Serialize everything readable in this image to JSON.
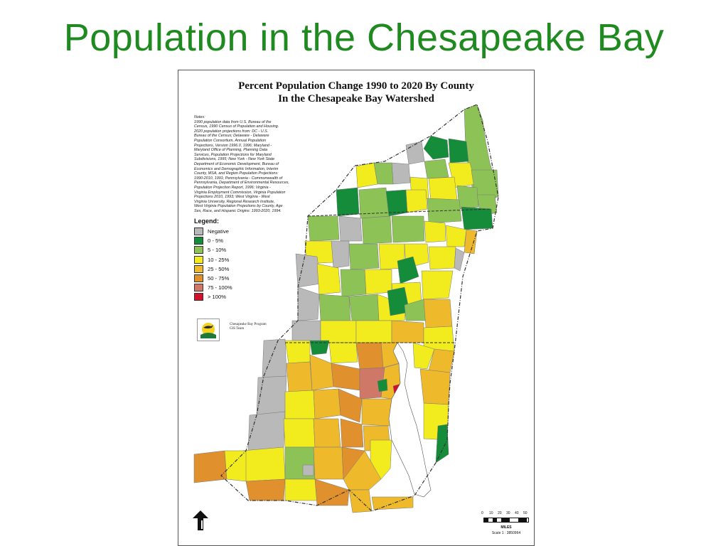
{
  "slide": {
    "title": "Population in the Chesapeake Bay"
  },
  "map": {
    "title_line1": "Percent Population Change 1990 to 2020 By County",
    "title_line2": "In the Chesapeake Bay Watershed",
    "notes_header": "Notes:",
    "notes": [
      "1990 population data from U.S. Bureau of the",
      "Census, 1990 Census of Population and Housing.",
      "2020 population projections from: DC - U.S.",
      "Bureau of the Census; Delaware - Delaware",
      "Population Consortium, Annual Population",
      "Projections, Version 1996.0, 1996; Maryland -",
      "Maryland Office of Planning, Planning Data",
      "Services, Population Projections for Maryland",
      "Subdivisions, 1995; New York - New York State",
      "Department of Economic Development, Bureau of",
      "Economics and Demographic Information, Interim",
      "County, MSA, and Region Population Projections:",
      "1990-2010, 1991; Pennsylvania - Commonwealth of",
      "Pennsylvania, Department of Environmental Resources,",
      "Population Projection Report, 1996; Virginia -",
      "Virginia Employment Commission, Virginia Population",
      "Projections 2010, 1993; West Virginia - West",
      "Virginia University, Regional Research Institute,",
      "West Virginia Population Projections by County, Age",
      "Sex, Race, and Hispanic Origins: 1993-2020, 1994."
    ],
    "legend": {
      "title": "Legend:",
      "items": [
        {
          "label": "Negative",
          "color": "#b9b9b9"
        },
        {
          "label": "0 - 5%",
          "color": "#158c3a"
        },
        {
          "label": "5 - 10%",
          "color": "#8dc356"
        },
        {
          "label": "10 - 25%",
          "color": "#f2ec1e"
        },
        {
          "label": "25 - 50%",
          "color": "#efb92c"
        },
        {
          "label": "50 - 75%",
          "color": "#e0902c"
        },
        {
          "label": "75 - 100%",
          "color": "#cf7868"
        },
        {
          "label": "> 100%",
          "color": "#d2102a"
        }
      ]
    },
    "logo_text_line1": "Chesapeake Bay Program",
    "logo_text_line2": "GIS Team",
    "scale": {
      "ticks": [
        "0",
        "10",
        "20",
        "30",
        "40",
        "50"
      ],
      "unit": "MILES",
      "ratio": "Scale 1 : 3850964"
    },
    "water_color": "#ffffff",
    "boundary_color": "#333333"
  }
}
